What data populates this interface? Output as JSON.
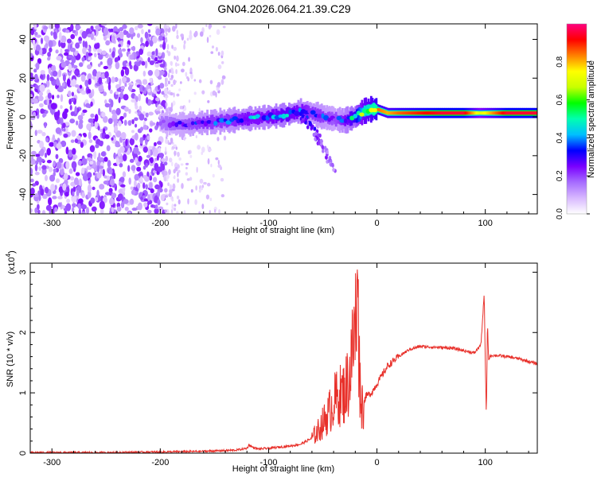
{
  "figure_title": "GN04.2026.064.21.39.C29",
  "chart_data": [
    {
      "type": "heatmap",
      "xlabel": "Height of straight line (km)",
      "ylabel": "Frequency (Hz)",
      "xlim": [
        -320,
        148
      ],
      "ylim": [
        -50,
        48
      ],
      "xticks": [
        -300,
        -200,
        -100,
        0,
        100
      ],
      "yticks": [
        -40,
        -20,
        0,
        20,
        40
      ],
      "grid": false,
      "colorbar": {
        "label": "Normalized spectral amplitude",
        "range": [
          0,
          1
        ],
        "ticks": [
          0.0,
          0.2,
          0.4,
          0.6,
          0.8
        ],
        "tick_labels": [
          "0.0",
          "0.2",
          "0.4",
          "0.6",
          "0.8"
        ],
        "colormap": [
          "#ffffff",
          "#d8b8ff",
          "#a66cff",
          "#7a00ff",
          "#0000ff",
          "#00bfff",
          "#00ffb0",
          "#00ff00",
          "#c8ff00",
          "#ffff00",
          "#ff8000",
          "#ff0000",
          "#ff0080"
        ]
      },
      "noise_region": {
        "x": [
          -320,
          -195
        ],
        "y": [
          -50,
          48
        ],
        "amplitude": 0.15
      },
      "sparse_region": {
        "x": [
          -195,
          -140
        ],
        "y": [
          -50,
          48
        ],
        "amplitude": 0.05
      },
      "ridge": [
        {
          "x": -200,
          "y": -3,
          "amp": 0.25
        },
        {
          "x": -180,
          "y": -4,
          "amp": 0.3
        },
        {
          "x": -160,
          "y": -3,
          "amp": 0.35
        },
        {
          "x": -140,
          "y": -2,
          "amp": 0.35
        },
        {
          "x": -120,
          "y": -1,
          "amp": 0.4
        },
        {
          "x": -100,
          "y": 0,
          "amp": 0.4
        },
        {
          "x": -85,
          "y": 1,
          "amp": 0.45
        },
        {
          "x": -70,
          "y": 3,
          "amp": 0.4
        },
        {
          "x": -60,
          "y": 2,
          "amp": 0.35
        },
        {
          "x": -50,
          "y": 0,
          "amp": 0.35
        },
        {
          "x": -40,
          "y": -1,
          "amp": 0.3
        },
        {
          "x": -30,
          "y": -2,
          "amp": 0.4
        },
        {
          "x": -20,
          "y": 0,
          "amp": 0.5
        },
        {
          "x": -12,
          "y": 3,
          "amp": 0.75
        },
        {
          "x": -5,
          "y": 4,
          "amp": 0.8
        },
        {
          "x": 0,
          "y": 4,
          "amp": 0.85
        },
        {
          "x": 10,
          "y": 2,
          "amp": 0.8
        },
        {
          "x": 20,
          "y": 2,
          "amp": 0.85
        },
        {
          "x": 40,
          "y": 2,
          "amp": 0.9
        },
        {
          "x": 60,
          "y": 2,
          "amp": 0.95
        },
        {
          "x": 80,
          "y": 2,
          "amp": 0.95
        },
        {
          "x": 95,
          "y": 2,
          "amp": 0.7
        },
        {
          "x": 105,
          "y": 2,
          "amp": 0.8
        },
        {
          "x": 120,
          "y": 2,
          "amp": 0.95
        },
        {
          "x": 148,
          "y": 2,
          "amp": 0.95
        }
      ],
      "drop_branch": [
        {
          "x": -70,
          "y": 0,
          "amp": 0.3
        },
        {
          "x": -60,
          "y": -6,
          "amp": 0.25
        },
        {
          "x": -50,
          "y": -15,
          "amp": 0.2
        },
        {
          "x": -45,
          "y": -22,
          "amp": 0.2
        },
        {
          "x": -40,
          "y": -27,
          "amp": 0.15
        }
      ]
    },
    {
      "type": "line",
      "xlabel": "Height of straight line (km)",
      "ylabel": "SNR (10 * v/v)",
      "y_multiplier": "(x10",
      "y_multiplier_exp": "4",
      "y_multiplier_close": ")",
      "xlim": [
        -320,
        148
      ],
      "ylim": [
        0,
        3.15
      ],
      "xticks": [
        -300,
        -200,
        -100,
        0,
        100
      ],
      "yticks": [
        0,
        1,
        2,
        3
      ],
      "grid": false,
      "color": "#e8302a",
      "series": [
        {
          "x": [
            -320,
            -250,
            -200,
            -160,
            -130,
            -120,
            -118,
            -115,
            -110,
            -100,
            -90,
            -80,
            -70,
            -60,
            -55,
            -50,
            -45,
            -40,
            -35,
            -30,
            -25,
            -22,
            -20,
            -18,
            -17,
            -16,
            -15,
            -13,
            -10,
            -5,
            0,
            5,
            10,
            20,
            30,
            40,
            50,
            60,
            70,
            80,
            90,
            96,
            99,
            100,
            101,
            102,
            103,
            105,
            110,
            120,
            130,
            140,
            148
          ],
          "values": [
            0.01,
            0.01,
            0.02,
            0.03,
            0.05,
            0.08,
            0.14,
            0.1,
            0.07,
            0.08,
            0.1,
            0.12,
            0.15,
            0.25,
            0.35,
            0.5,
            0.65,
            0.85,
            0.95,
            1.0,
            1.3,
            1.8,
            2.05,
            3.12,
            2.1,
            1.35,
            0.9,
            0.8,
            0.95,
            1.0,
            1.15,
            1.3,
            1.45,
            1.6,
            1.72,
            1.77,
            1.76,
            1.75,
            1.74,
            1.7,
            1.66,
            1.8,
            2.65,
            1.5,
            0.6,
            2.2,
            1.55,
            1.62,
            1.62,
            1.6,
            1.57,
            1.52,
            1.48
          ]
        }
      ]
    }
  ]
}
